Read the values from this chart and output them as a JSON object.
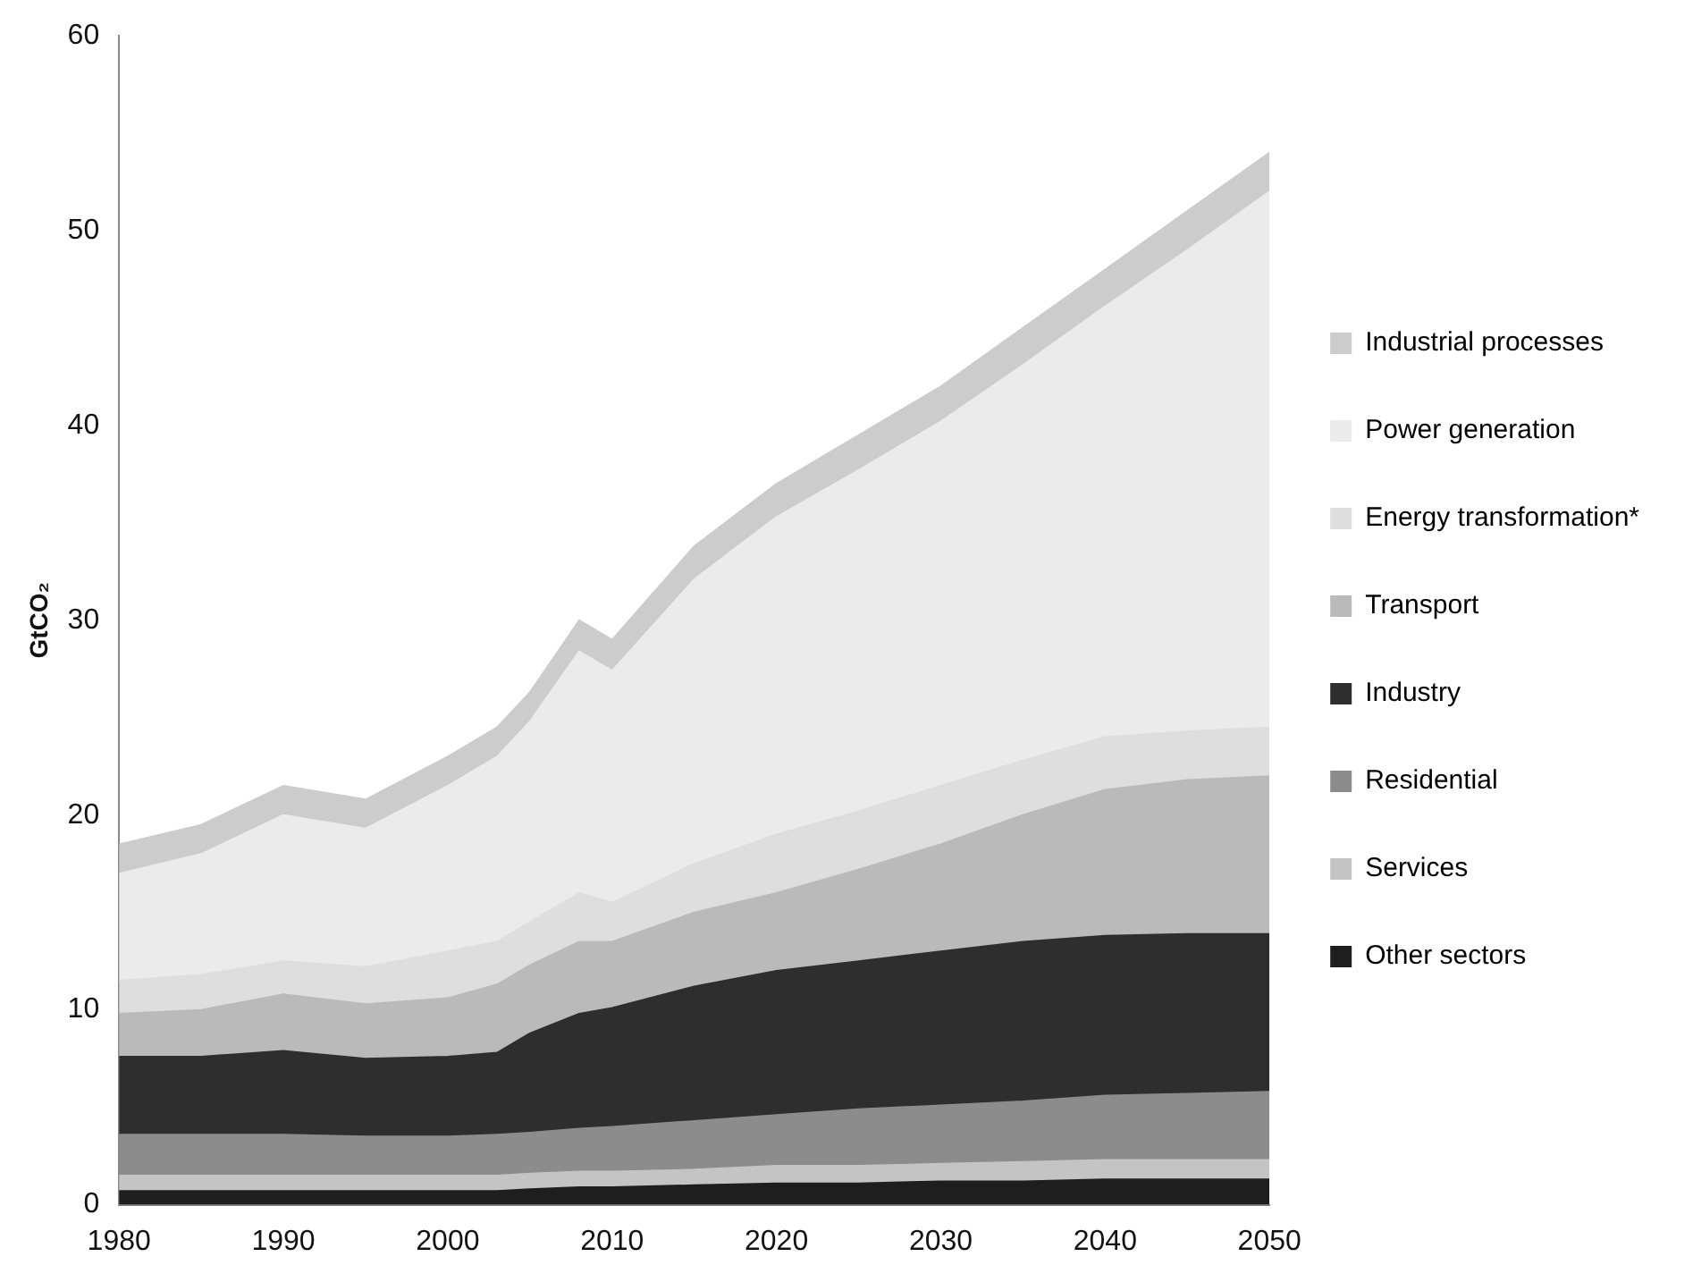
{
  "chart_data": {
    "type": "area",
    "stacked": true,
    "ylabel": "GtCO₂",
    "x": [
      1980,
      1985,
      1990,
      1995,
      2000,
      2003,
      2005,
      2008,
      2010,
      2015,
      2020,
      2025,
      2030,
      2035,
      2040,
      2045,
      2050
    ],
    "xlim": [
      1980,
      2050
    ],
    "xticks": [
      1980,
      1990,
      2000,
      2010,
      2020,
      2030,
      2040,
      2050
    ],
    "ylim": [
      0,
      60
    ],
    "yticks": [
      0,
      10,
      20,
      30,
      40,
      50,
      60
    ],
    "grid": false,
    "legend": "right",
    "series": [
      {
        "name": "Other sectors",
        "color": "#1e1e1e",
        "values": [
          0.7,
          0.7,
          0.7,
          0.7,
          0.7,
          0.7,
          0.8,
          0.9,
          0.9,
          1,
          1.1,
          1.1,
          1.2,
          1.2,
          1.3,
          1.3,
          1.3
        ]
      },
      {
        "name": "Services",
        "color": "#c4c4c4",
        "values": [
          0.8,
          0.8,
          0.8,
          0.8,
          0.8,
          0.8,
          0.8,
          0.8,
          0.8,
          0.8,
          0.9,
          0.9,
          0.9,
          1,
          1,
          1,
          1
        ]
      },
      {
        "name": "Residential",
        "color": "#8c8c8c",
        "values": [
          2.1,
          2.1,
          2.1,
          2.0,
          2.0,
          2.1,
          2.1,
          2.2,
          2.3,
          2.5,
          2.6,
          2.9,
          3.0,
          3.1,
          3.3,
          3.4,
          3.5
        ]
      },
      {
        "name": "Industry",
        "color": "#2e2e2e",
        "values": [
          4.0,
          4.0,
          4.3,
          4.0,
          4.1,
          4.2,
          5.1,
          5.9,
          6.1,
          6.9,
          7.4,
          7.6,
          7.9,
          8.2,
          8.2,
          8.2,
          8.1
        ]
      },
      {
        "name": "Transport",
        "color": "#bababa",
        "values": [
          2.2,
          2.4,
          2.9,
          2.8,
          3.0,
          3.5,
          3.5,
          3.7,
          3.4,
          3.8,
          4.0,
          4.7,
          5.5,
          6.5,
          7.5,
          7.9,
          8.1
        ]
      },
      {
        "name": "Energy transformation*",
        "color": "#dedede",
        "values": [
          1.7,
          1.8,
          1.7,
          1.9,
          2.4,
          2.2,
          2.2,
          2.5,
          2.0,
          2.5,
          3.0,
          3.0,
          3.0,
          2.8,
          2.7,
          2.5,
          2.5
        ]
      },
      {
        "name": "Power generation",
        "color": "#ebebeb",
        "values": [
          5.5,
          6.2,
          7.5,
          7.1,
          8.5,
          9.5,
          10.3,
          12.4,
          11.9,
          14.6,
          16.3,
          17.5,
          18.7,
          20.3,
          22.1,
          24.7,
          27.5
        ]
      },
      {
        "name": "Industrial processes",
        "color": "#cccccc",
        "values": [
          1.5,
          1.5,
          1.5,
          1.5,
          1.5,
          1.5,
          1.5,
          1.6,
          1.6,
          1.7,
          1.7,
          1.8,
          1.8,
          1.9,
          1.9,
          2,
          2
        ]
      }
    ]
  }
}
